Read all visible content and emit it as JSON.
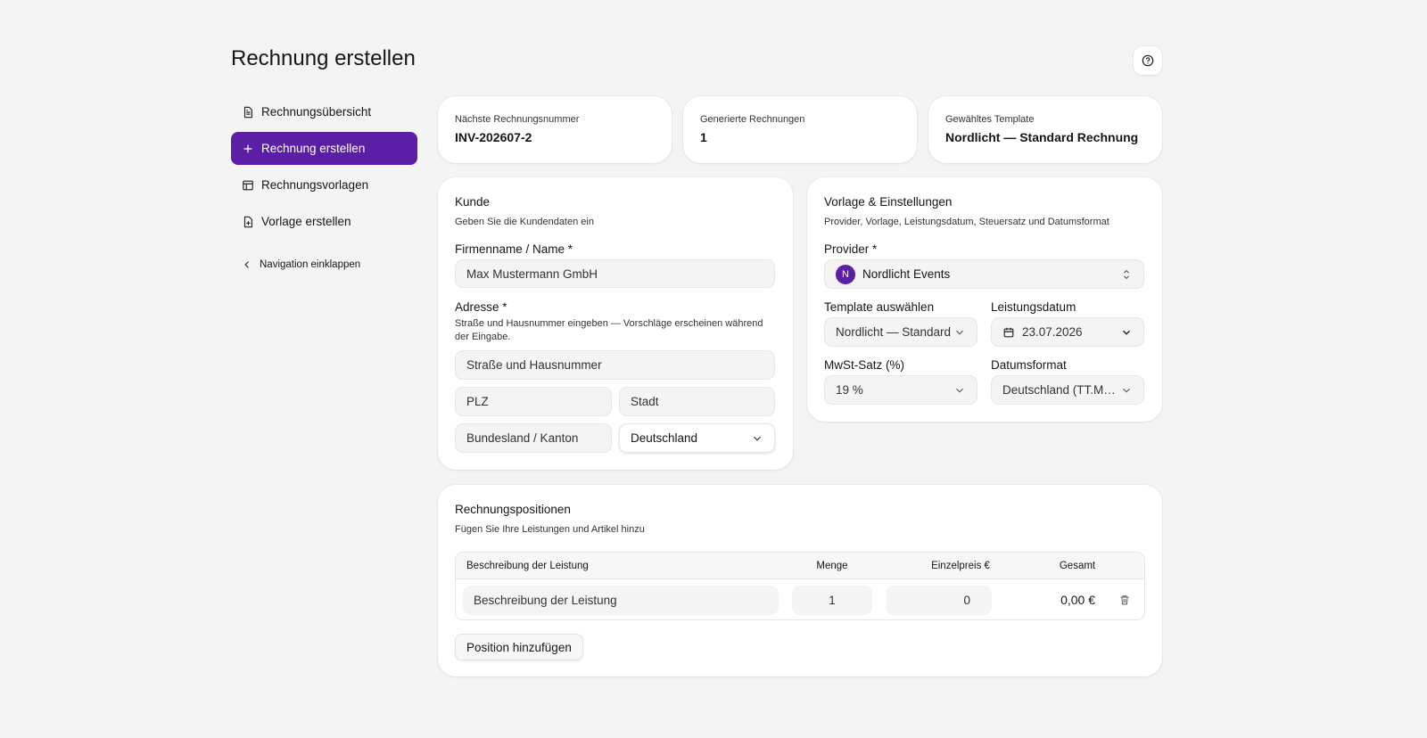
{
  "header": {
    "title": "Rechnung erstellen"
  },
  "nav": {
    "items": [
      "Rechnungsübersicht",
      "Rechnung erstellen",
      "Rechnungsvorlagen",
      "Vorlage erstellen"
    ],
    "collapse": "Navigation einklappen"
  },
  "stats": [
    {
      "label": "Nächste Rechnungsnummer",
      "value": "INV-202607-2"
    },
    {
      "label": "Generierte Rechnungen",
      "value": 1
    },
    {
      "label": "Gewähltes Template",
      "value": "Nordlicht — Standard Rechnung"
    }
  ],
  "customer": {
    "title": "Kunde",
    "subtitle": "Geben Sie die Kundendaten ein",
    "name_label": "Firmenname / Name *",
    "name_placeholder": "Max Mustermann GmbH",
    "address_label": "Adresse *",
    "address_hint": "Straße und Hausnummer eingeben — Vorschläge erscheinen während der Eingabe.",
    "street_placeholder": "Straße und Hausnummer",
    "zip_placeholder": "PLZ",
    "city_placeholder": "Stadt",
    "state_placeholder": "Bundesland / Kanton",
    "country": "Deutschland"
  },
  "settings": {
    "title": "Vorlage & Einstellungen",
    "subtitle": "Provider, Vorlage, Leistungsdatum, Steuersatz und Datumsformat",
    "provider_label": "Provider *",
    "provider_initial": "N",
    "provider": "Nordlicht Events",
    "template_label": "Template auswählen",
    "template": "Nordlicht — Standard",
    "date_label": "Leistungsdatum",
    "date": "23.07.2026",
    "vat_label": "MwSt-Satz (%)",
    "vat": "19 %",
    "format_label": "Datumsformat",
    "format": "Deutschland (TT.MM.JJJJ)"
  },
  "positions": {
    "title": "Rechnungspositionen",
    "subtitle": "Fügen Sie Ihre Leistungen und Artikel hinzu",
    "columns": [
      "Beschreibung der Leistung",
      "Menge",
      "Einzelpreis €",
      "Gesamt"
    ],
    "rows": [
      {
        "description": "Beschreibung der Leistung",
        "quantity": 1,
        "unit_price": 0,
        "total": "0,00 €"
      }
    ],
    "add_button": "Position hinzufügen"
  }
}
